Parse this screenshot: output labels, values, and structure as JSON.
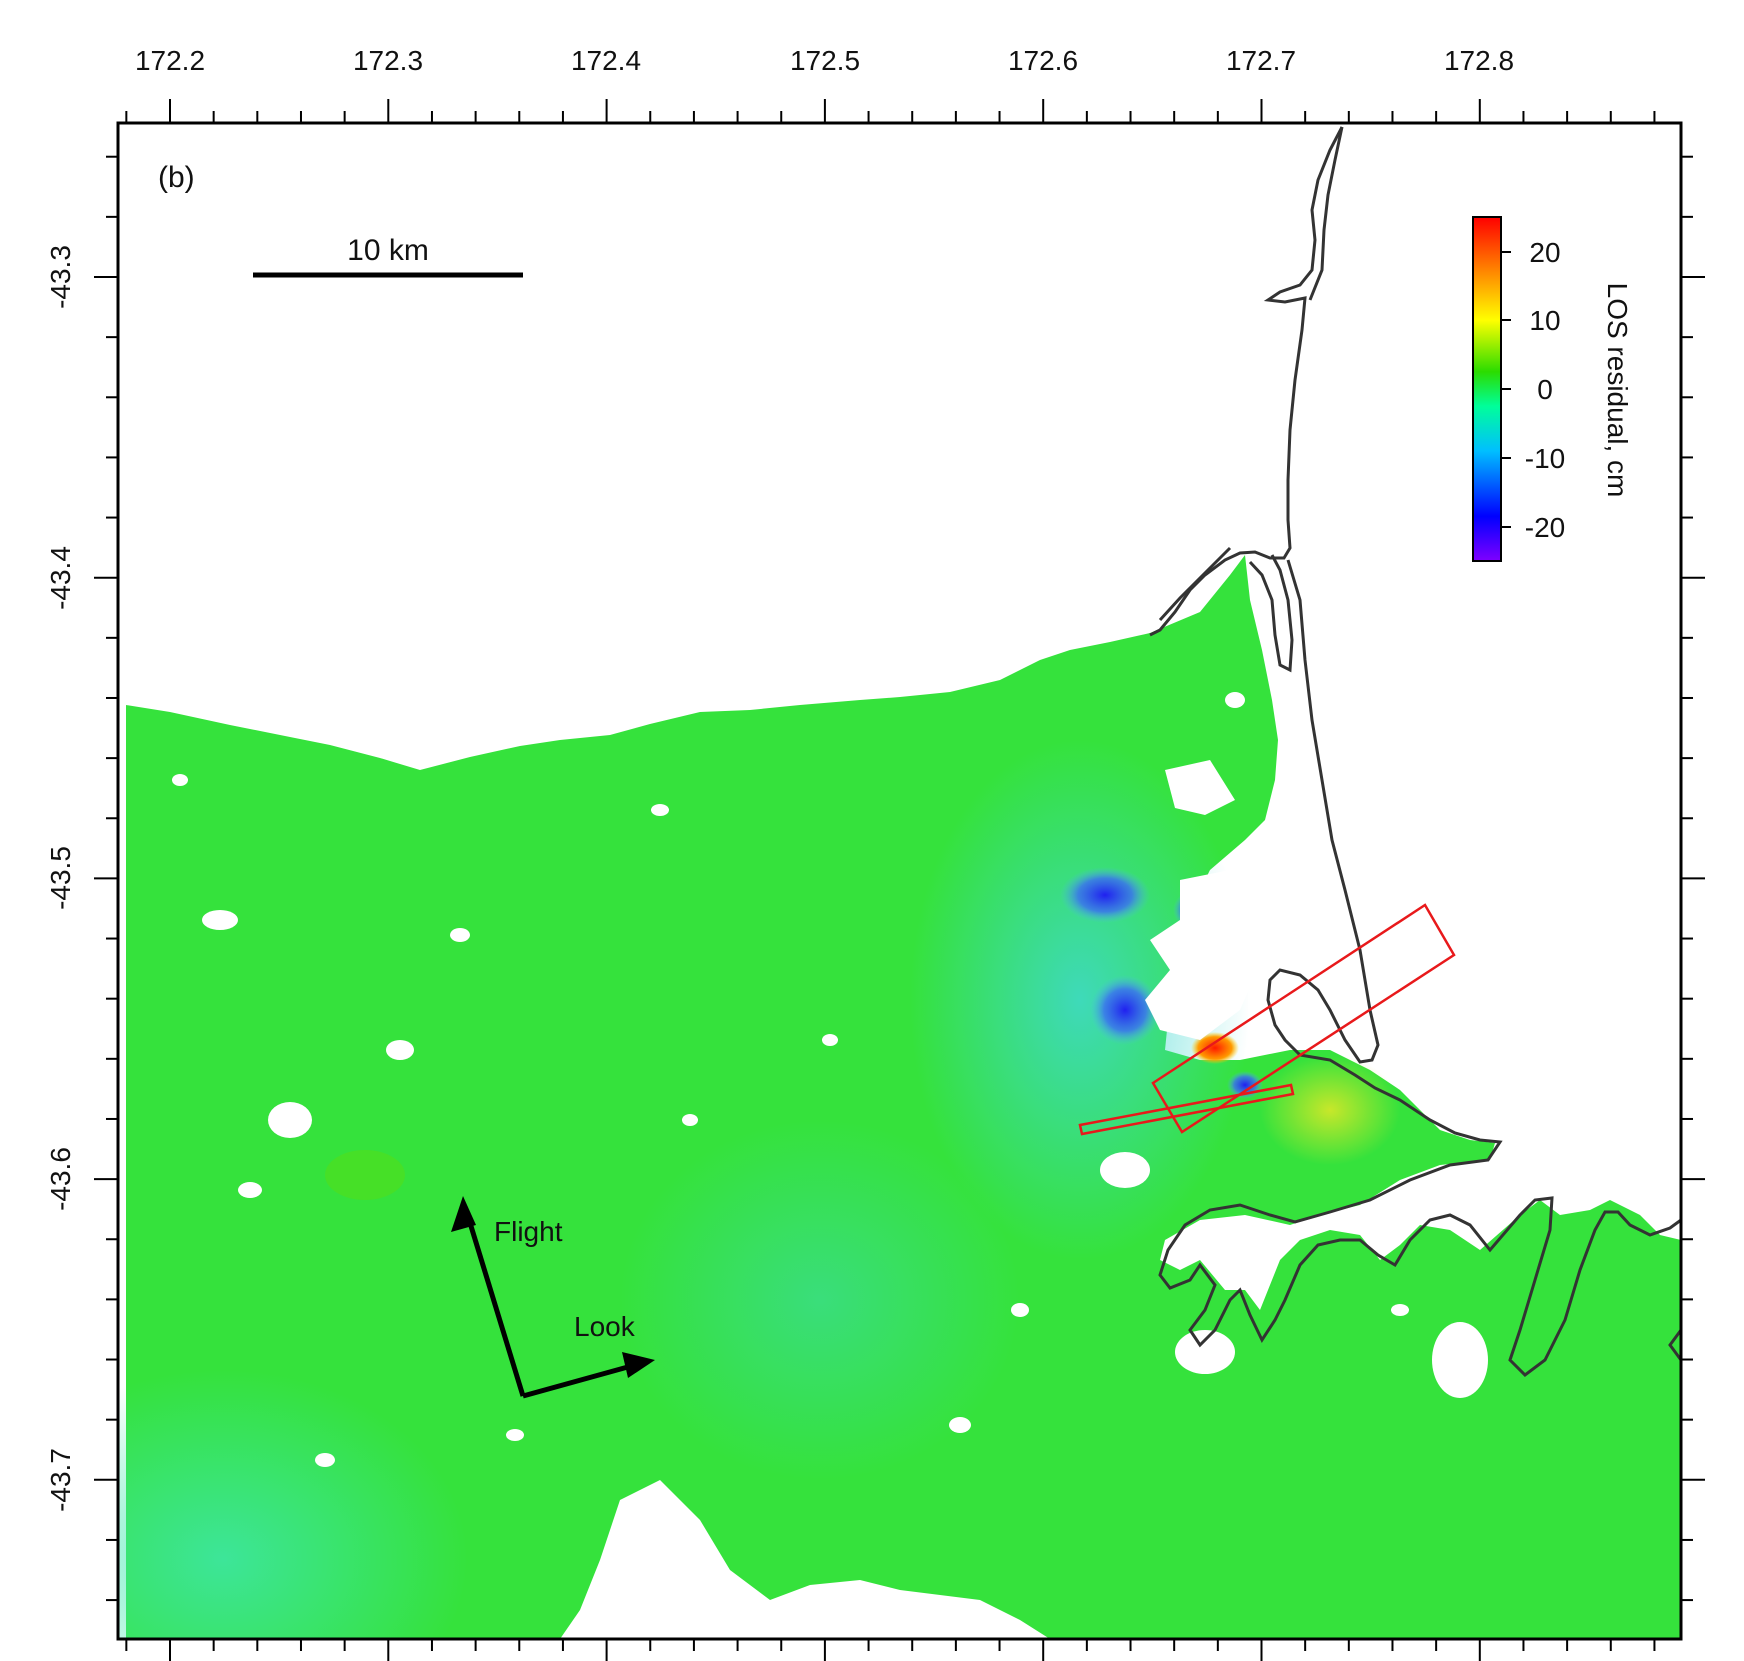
{
  "panel_label": "(b)",
  "scale_bar": {
    "label": "10 km",
    "lon_start": 172.237,
    "lon_end": 172.359,
    "lat": -43.3
  },
  "axes": {
    "x_range": [
      172.18,
      172.87
    ],
    "y_range": [
      -43.775,
      -43.25
    ],
    "x_tick_labels": [
      "172.2",
      "172.3",
      "172.4",
      "172.5",
      "172.6",
      "172.7",
      "172.8"
    ],
    "y_tick_labels": [
      "-43.3",
      "-43.4",
      "-43.5",
      "-43.6",
      "-43.7"
    ]
  },
  "colorbar": {
    "title": "LOS residual, cm",
    "range": [
      -25,
      25
    ],
    "tick_labels": [
      "20",
      "10",
      "0",
      "-10",
      "-20"
    ],
    "stops": [
      "#7f00ff",
      "#0000ff",
      "#00bfff",
      "#00ff7f",
      "#2bdc00",
      "#ffff00",
      "#ff8000",
      "#ff0000"
    ]
  },
  "arrows": {
    "flight_label": "Flight",
    "look_label": "Look"
  },
  "colors": {
    "land_green": "#2bdc3a",
    "coast_line": "#333333",
    "fault_outline": "#e8191b",
    "frame": "#000000"
  }
}
